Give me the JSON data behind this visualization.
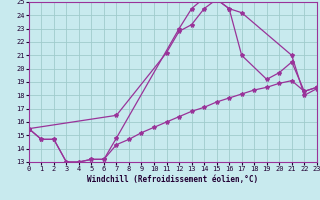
{
  "xlabel": "Windchill (Refroidissement éolien,°C)",
  "bg_color": "#c8eaee",
  "grid_color": "#a0cccc",
  "line_color": "#993399",
  "spine_color": "#993399",
  "xlim": [
    0,
    23
  ],
  "ylim": [
    13,
    25
  ],
  "yticks": [
    13,
    14,
    15,
    16,
    17,
    18,
    19,
    20,
    21,
    22,
    23,
    24,
    25
  ],
  "xticks": [
    0,
    1,
    2,
    3,
    4,
    5,
    6,
    7,
    8,
    9,
    10,
    11,
    12,
    13,
    14,
    15,
    16,
    17,
    18,
    19,
    20,
    21,
    22,
    23
  ],
  "line1_x": [
    0,
    1,
    2,
    3,
    4,
    5,
    6,
    7,
    12,
    13,
    14,
    15,
    16,
    17,
    21,
    22,
    23
  ],
  "line1_y": [
    15.5,
    14.7,
    14.7,
    13.0,
    13.0,
    13.2,
    13.2,
    14.8,
    23.0,
    24.5,
    25.3,
    25.2,
    24.5,
    24.2,
    21.0,
    18.0,
    18.5
  ],
  "line2_x": [
    0,
    7,
    11,
    12,
    13,
    14,
    15,
    16,
    17,
    19,
    20,
    21,
    22,
    23
  ],
  "line2_y": [
    15.5,
    16.5,
    21.2,
    22.8,
    23.3,
    24.5,
    25.2,
    24.5,
    21.0,
    19.2,
    19.7,
    20.5,
    18.3,
    18.6
  ],
  "line3_x": [
    0,
    1,
    2,
    3,
    4,
    5,
    6,
    7,
    8,
    9,
    10,
    11,
    12,
    13,
    14,
    15,
    16,
    17,
    18,
    19,
    20,
    21,
    22,
    23
  ],
  "line3_y": [
    15.5,
    14.7,
    14.7,
    13.0,
    13.0,
    13.2,
    13.2,
    14.3,
    14.7,
    15.2,
    15.6,
    16.0,
    16.4,
    16.8,
    17.1,
    17.5,
    17.8,
    18.1,
    18.4,
    18.6,
    18.9,
    19.1,
    18.3,
    18.6
  ],
  "tick_fontsize": 5,
  "xlabel_fontsize": 5.5,
  "tick_color": "#220033",
  "xlabel_color": "#220033"
}
